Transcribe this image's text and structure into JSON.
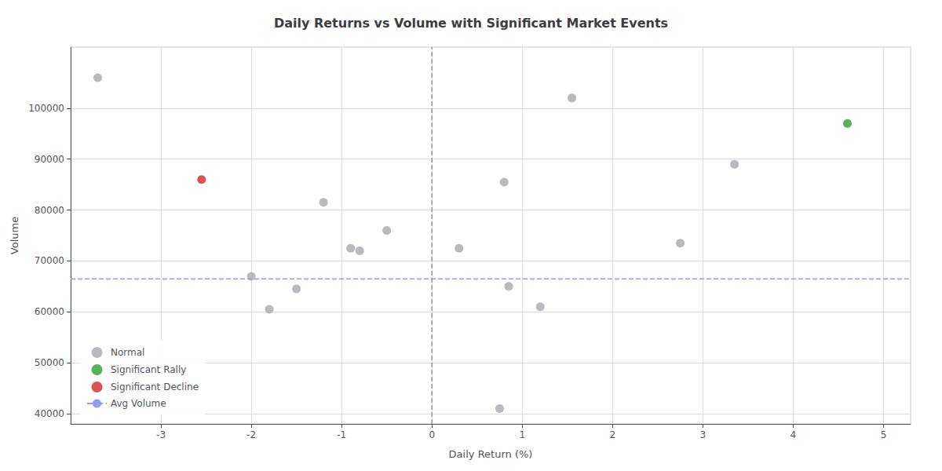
{
  "chart_data": {
    "type": "scatter",
    "title": "Daily Returns vs Volume with Significant Market Events",
    "xlabel": "Daily Return (%)",
    "ylabel": "Volume",
    "series": [
      {
        "name": "Normal",
        "color": "#a8a8b0",
        "values": [
          [
            -3.7,
            106000
          ],
          [
            -2.0,
            67000
          ],
          [
            -1.8,
            60500
          ],
          [
            -1.5,
            64500
          ],
          [
            -1.2,
            81500
          ],
          [
            -0.9,
            72500
          ],
          [
            -0.8,
            72000
          ],
          [
            -0.5,
            76000
          ],
          [
            0.3,
            72500
          ],
          [
            0.8,
            85500
          ],
          [
            0.85,
            65000
          ],
          [
            1.2,
            61000
          ],
          [
            1.55,
            102000
          ],
          [
            2.75,
            73500
          ],
          [
            3.35,
            89000
          ]
        ]
      },
      {
        "color": "#a8a8b0",
        "values": [
          [
            0.75,
            41000
          ]
        ]
      },
      {
        "name": "Significant Rally",
        "color": "#2ca02c",
        "values": [
          [
            4.6,
            97000
          ]
        ]
      },
      {
        "name": "Significant Decline",
        "color": "#d62728",
        "values": [
          [
            -2.55,
            86000
          ]
        ]
      },
      {
        "name": "Avg Volume",
        "type": "hline",
        "y": 66500,
        "color": "#9999ee",
        "line_style": "dashed"
      },
      {
        "type": "vline",
        "x": 0,
        "color": "#999999",
        "line_style": "dashed"
      }
    ],
    "xlim": [
      -4.0,
      5.3
    ],
    "ylim": [
      38000,
      112000
    ],
    "xticks": [
      -3,
      -2,
      -1,
      0,
      1,
      2,
      3,
      4,
      5
    ],
    "yticks": [
      40000,
      50000,
      60000,
      70000,
      80000,
      90000,
      100000
    ],
    "grid": true,
    "legend": "lower left"
  }
}
